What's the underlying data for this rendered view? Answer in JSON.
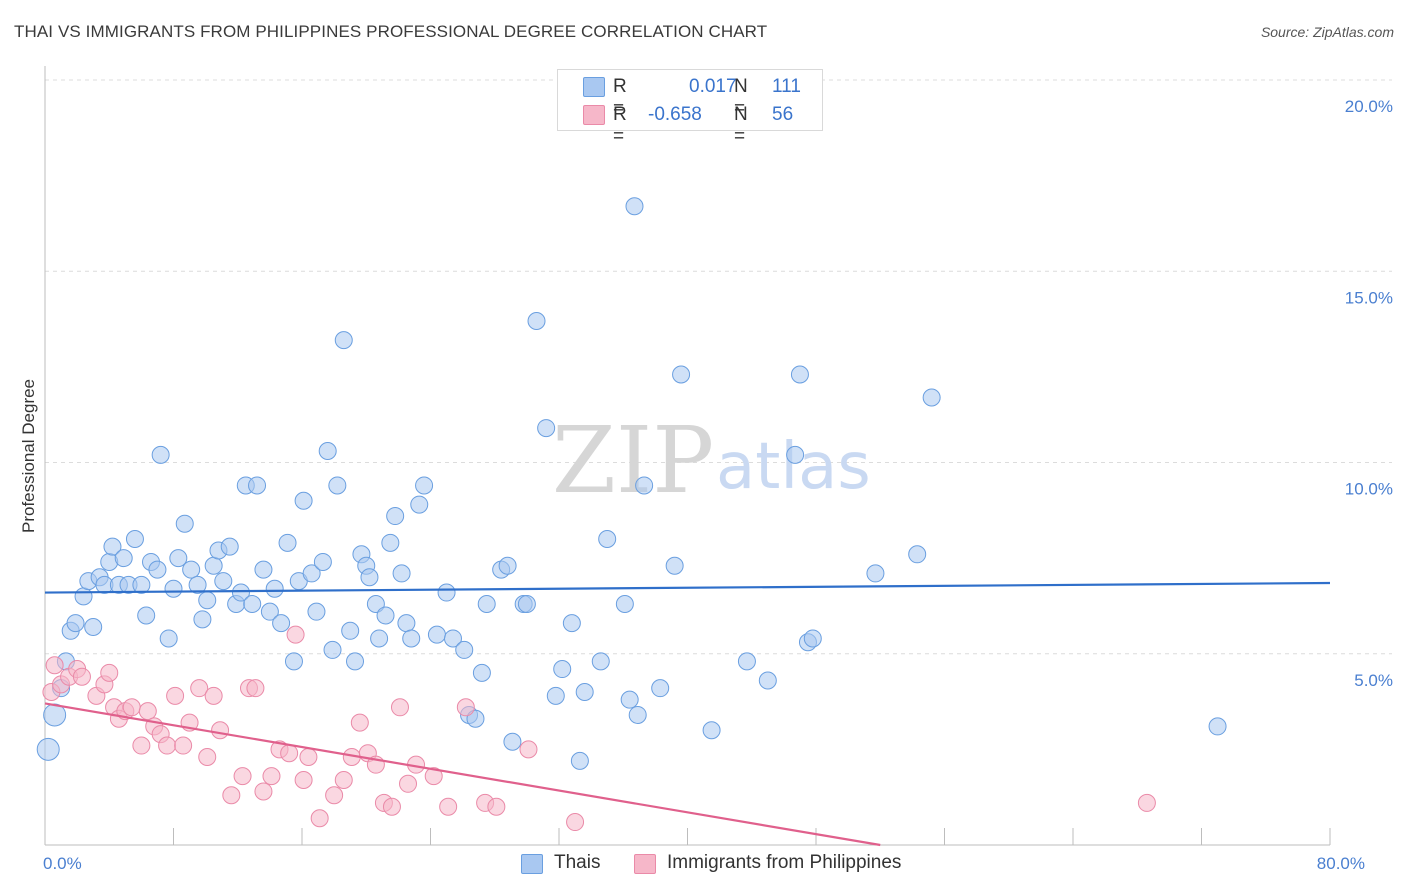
{
  "header": {
    "title": "THAI VS IMMIGRANTS FROM PHILIPPINES PROFESSIONAL DEGREE CORRELATION CHART",
    "source": "Source: ZipAtlas.com"
  },
  "watermark": {
    "zip": "ZIP",
    "atlas": "atlas"
  },
  "legend": {
    "r_label": "R =",
    "n_label": "N =",
    "rows": [
      {
        "r": "0.017",
        "n": "111",
        "color": "#a9c8f1"
      },
      {
        "r": "-0.658",
        "n": "56",
        "color": "#f6b7c9"
      }
    ]
  },
  "bottom_legend": [
    {
      "label": "Thais",
      "color": "#a9c8f1"
    },
    {
      "label": "Immigrants from Philippines",
      "color": "#f6b7c9"
    }
  ],
  "chart_data": {
    "type": "scatter",
    "ylabel": "Professional Degree",
    "xlim": [
      0,
      80
    ],
    "ylim": [
      0,
      20
    ],
    "x_tick_labels": [
      {
        "value": 0,
        "label": "0.0%"
      },
      {
        "value": 80,
        "label": "80.0%"
      }
    ],
    "y_tick_labels": [
      {
        "value": 5,
        "label": "5.0%"
      },
      {
        "value": 10,
        "label": "10.0%"
      },
      {
        "value": 15,
        "label": "15.0%"
      },
      {
        "value": 20,
        "label": "20.0%"
      }
    ],
    "grid": true,
    "legend_position": "top-center",
    "series": [
      {
        "name": "Thais",
        "color": "#a9c8f1",
        "stroke": "#6a9fe0",
        "trend": {
          "x": [
            0,
            80
          ],
          "y": [
            6.6,
            6.85
          ],
          "color": "#2f6fca"
        },
        "points": [
          [
            0.2,
            2.5
          ],
          [
            0.6,
            3.4
          ],
          [
            1.0,
            4.1
          ],
          [
            1.3,
            4.8
          ],
          [
            1.6,
            5.6
          ],
          [
            1.9,
            5.8
          ],
          [
            2.4,
            6.5
          ],
          [
            2.7,
            6.9
          ],
          [
            3.0,
            5.7
          ],
          [
            3.4,
            7.0
          ],
          [
            3.7,
            6.8
          ],
          [
            4.0,
            7.4
          ],
          [
            4.2,
            7.8
          ],
          [
            4.6,
            6.8
          ],
          [
            4.9,
            7.5
          ],
          [
            5.2,
            6.8
          ],
          [
            5.6,
            8.0
          ],
          [
            6.0,
            6.8
          ],
          [
            6.3,
            6.0
          ],
          [
            6.6,
            7.4
          ],
          [
            7.0,
            7.2
          ],
          [
            7.2,
            10.2
          ],
          [
            7.7,
            5.4
          ],
          [
            8.0,
            6.7
          ],
          [
            8.3,
            7.5
          ],
          [
            8.7,
            8.4
          ],
          [
            9.1,
            7.2
          ],
          [
            9.5,
            6.8
          ],
          [
            9.8,
            5.9
          ],
          [
            10.1,
            6.4
          ],
          [
            10.5,
            7.3
          ],
          [
            10.8,
            7.7
          ],
          [
            11.1,
            6.9
          ],
          [
            11.5,
            7.8
          ],
          [
            11.9,
            6.3
          ],
          [
            12.2,
            6.6
          ],
          [
            12.5,
            9.4
          ],
          [
            12.9,
            6.3
          ],
          [
            13.2,
            9.4
          ],
          [
            13.6,
            7.2
          ],
          [
            14.0,
            6.1
          ],
          [
            14.3,
            6.7
          ],
          [
            14.7,
            5.8
          ],
          [
            15.1,
            7.9
          ],
          [
            15.5,
            4.8
          ],
          [
            15.8,
            6.9
          ],
          [
            16.1,
            9.0
          ],
          [
            16.6,
            7.1
          ],
          [
            16.9,
            6.1
          ],
          [
            17.3,
            7.4
          ],
          [
            17.6,
            10.3
          ],
          [
            17.9,
            5.1
          ],
          [
            18.2,
            9.4
          ],
          [
            18.6,
            13.2
          ],
          [
            19.0,
            5.6
          ],
          [
            19.3,
            4.8
          ],
          [
            19.7,
            7.6
          ],
          [
            20.0,
            7.3
          ],
          [
            20.2,
            7.0
          ],
          [
            20.6,
            6.3
          ],
          [
            20.8,
            5.4
          ],
          [
            21.2,
            6.0
          ],
          [
            21.5,
            7.9
          ],
          [
            21.8,
            8.6
          ],
          [
            22.2,
            7.1
          ],
          [
            22.5,
            5.8
          ],
          [
            22.8,
            5.4
          ],
          [
            23.3,
            8.9
          ],
          [
            23.6,
            9.4
          ],
          [
            24.4,
            5.5
          ],
          [
            25.0,
            6.6
          ],
          [
            25.4,
            5.4
          ],
          [
            26.1,
            5.1
          ],
          [
            26.4,
            3.4
          ],
          [
            26.8,
            3.3
          ],
          [
            27.2,
            4.5
          ],
          [
            27.5,
            6.3
          ],
          [
            28.4,
            7.2
          ],
          [
            28.8,
            7.3
          ],
          [
            29.1,
            2.7
          ],
          [
            29.8,
            6.3
          ],
          [
            30.0,
            6.3
          ],
          [
            30.6,
            13.7
          ],
          [
            31.2,
            10.9
          ],
          [
            31.8,
            3.9
          ],
          [
            32.2,
            4.6
          ],
          [
            32.8,
            5.8
          ],
          [
            33.3,
            2.2
          ],
          [
            33.6,
            4.0
          ],
          [
            34.6,
            4.8
          ],
          [
            35.0,
            8.0
          ],
          [
            36.1,
            6.3
          ],
          [
            36.4,
            3.8
          ],
          [
            36.7,
            16.7
          ],
          [
            36.9,
            3.4
          ],
          [
            37.3,
            9.4
          ],
          [
            38.3,
            4.1
          ],
          [
            39.2,
            7.3
          ],
          [
            39.6,
            12.3
          ],
          [
            41.5,
            3.0
          ],
          [
            43.7,
            4.8
          ],
          [
            45.0,
            4.3
          ],
          [
            46.7,
            10.2
          ],
          [
            47.0,
            12.3
          ],
          [
            47.5,
            5.3
          ],
          [
            47.8,
            5.4
          ],
          [
            51.7,
            7.1
          ],
          [
            54.3,
            7.6
          ],
          [
            55.2,
            11.7
          ],
          [
            73.0,
            3.1
          ]
        ]
      },
      {
        "name": "Immigrants from Philippines",
        "color": "#f6b7c9",
        "stroke": "#ea8aa8",
        "trend": {
          "x": [
            0,
            52
          ],
          "y": [
            3.7,
            0.0
          ],
          "color": "#e0608c"
        },
        "points": [
          [
            0.4,
            4.0
          ],
          [
            0.6,
            4.7
          ],
          [
            1.0,
            4.2
          ],
          [
            1.5,
            4.4
          ],
          [
            2.0,
            4.6
          ],
          [
            2.3,
            4.4
          ],
          [
            3.2,
            3.9
          ],
          [
            3.7,
            4.2
          ],
          [
            4.0,
            4.5
          ],
          [
            4.3,
            3.6
          ],
          [
            4.6,
            3.3
          ],
          [
            5.0,
            3.5
          ],
          [
            5.4,
            3.6
          ],
          [
            6.0,
            2.6
          ],
          [
            6.4,
            3.5
          ],
          [
            6.8,
            3.1
          ],
          [
            7.2,
            2.9
          ],
          [
            7.6,
            2.6
          ],
          [
            8.1,
            3.9
          ],
          [
            8.6,
            2.6
          ],
          [
            9.0,
            3.2
          ],
          [
            9.6,
            4.1
          ],
          [
            10.1,
            2.3
          ],
          [
            10.5,
            3.9
          ],
          [
            10.9,
            3.0
          ],
          [
            11.6,
            1.3
          ],
          [
            12.3,
            1.8
          ],
          [
            12.7,
            4.1
          ],
          [
            13.1,
            4.1
          ],
          [
            13.6,
            1.4
          ],
          [
            14.1,
            1.8
          ],
          [
            14.6,
            2.5
          ],
          [
            15.2,
            2.4
          ],
          [
            15.6,
            5.5
          ],
          [
            16.1,
            1.7
          ],
          [
            16.4,
            2.3
          ],
          [
            17.1,
            0.7
          ],
          [
            18.0,
            1.3
          ],
          [
            18.6,
            1.7
          ],
          [
            19.1,
            2.3
          ],
          [
            19.6,
            3.2
          ],
          [
            20.1,
            2.4
          ],
          [
            20.6,
            2.1
          ],
          [
            21.1,
            1.1
          ],
          [
            21.6,
            1.0
          ],
          [
            22.1,
            3.6
          ],
          [
            22.6,
            1.6
          ],
          [
            23.1,
            2.1
          ],
          [
            24.2,
            1.8
          ],
          [
            25.1,
            1.0
          ],
          [
            26.2,
            3.6
          ],
          [
            27.4,
            1.1
          ],
          [
            28.1,
            1.0
          ],
          [
            30.1,
            2.5
          ],
          [
            33.0,
            0.6
          ],
          [
            68.6,
            1.1
          ]
        ]
      }
    ]
  }
}
